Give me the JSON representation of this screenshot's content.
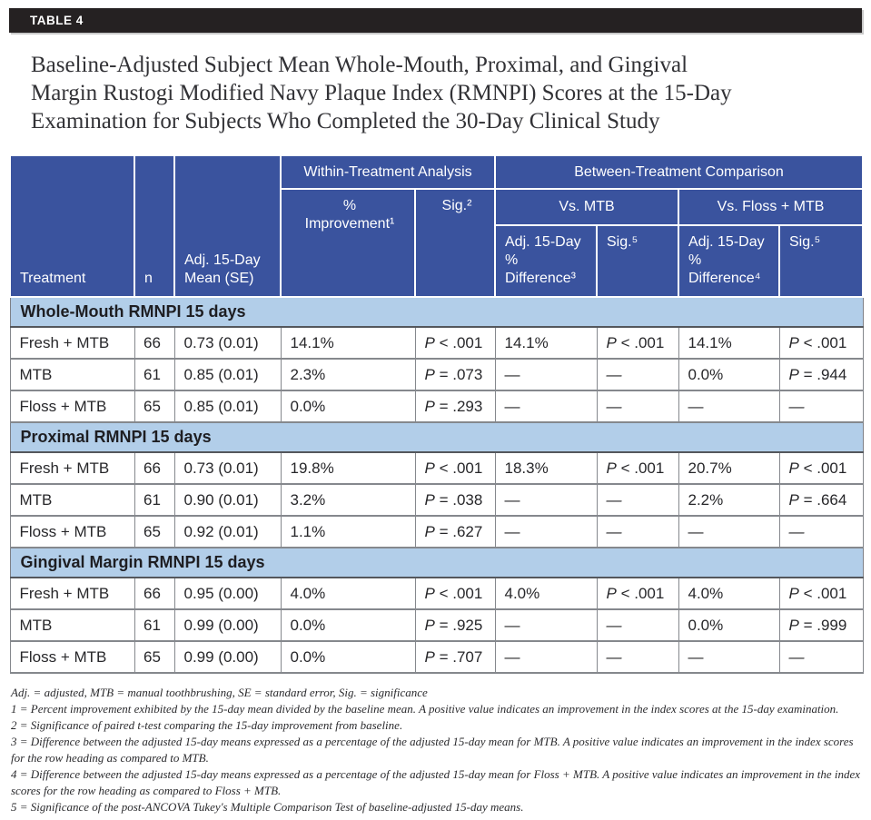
{
  "tag": "TABLE 4",
  "title": "Baseline-Adjusted Subject Mean Whole-Mouth, Proximal, and Gingival\nMargin Rustogi Modified Navy Plaque Index (RMNPI) Scores at the 15-Day\nExamination for Subjects Who Completed the 30-Day Clinical Study",
  "colors": {
    "header_blue": "#3A539E",
    "section_blue": "#B2CEE9",
    "tag_bar_black": "#252122",
    "border_gray": "#85888D"
  },
  "table": {
    "header": {
      "treatment": "Treatment",
      "n": "n",
      "mean": "Adj. 15-Day Mean (SE)",
      "within_group": "Within-Treatment Analysis",
      "between_group": "Between-Treatment Comparison",
      "pct_improvement": "%\nImprovement¹",
      "sig2": "Sig.²",
      "vs_mtb": "Vs. MTB",
      "vs_floss": "Vs. Floss + MTB",
      "adj_diff3": "Adj. 15-Day % Difference³",
      "sig5a": "Sig.⁵",
      "adj_diff4": "Adj. 15-Day % Difference⁴",
      "sig5b": "Sig.⁵"
    },
    "column_keys": [
      "treatment",
      "n",
      "adj-15-day-mean",
      "pct-improvement",
      "sig-within",
      "adj-diff-vs-mtb",
      "sig-vs-mtb",
      "adj-diff-vs-floss",
      "sig-vs-floss"
    ],
    "sig_columns": [
      4,
      6,
      8
    ],
    "sections": [
      {
        "label": "Whole-Mouth RMNPI 15 days",
        "rows": [
          [
            "Fresh + MTB",
            "66",
            "0.73 (0.01)",
            "14.1%",
            "P < .001",
            "14.1%",
            "P < .001",
            "14.1%",
            "P < .001"
          ],
          [
            "MTB",
            "61",
            "0.85 (0.01)",
            "2.3%",
            "P = .073",
            "—",
            "—",
            "0.0%",
            "P = .944"
          ],
          [
            "Floss + MTB",
            "65",
            "0.85 (0.01)",
            "0.0%",
            "P = .293",
            "—",
            "—",
            "—",
            "—"
          ]
        ]
      },
      {
        "label": "Proximal RMNPI 15 days",
        "rows": [
          [
            "Fresh + MTB",
            "66",
            "0.73 (0.01)",
            "19.8%",
            "P < .001",
            "18.3%",
            "P < .001",
            "20.7%",
            "P < .001"
          ],
          [
            "MTB",
            "61",
            "0.90 (0.01)",
            "3.2%",
            "P = .038",
            "—",
            "—",
            "2.2%",
            "P = .664"
          ],
          [
            "Floss + MTB",
            "65",
            "0.92 (0.01)",
            "1.1%",
            "P = .627",
            "—",
            "—",
            "—",
            "—"
          ]
        ]
      },
      {
        "label": "Gingival Margin RMNPI 15 days",
        "rows": [
          [
            "Fresh + MTB",
            "66",
            "0.95 (0.00)",
            "4.0%",
            "P < .001",
            "4.0%",
            "P < .001",
            "4.0%",
            "P < .001"
          ],
          [
            "MTB",
            "61",
            "0.99 (0.00)",
            "0.0%",
            "P = .925",
            "—",
            "—",
            "0.0%",
            "P = .999"
          ],
          [
            "Floss + MTB",
            "65",
            "0.99 (0.00)",
            "0.0%",
            "P = .707",
            "—",
            "—",
            "—",
            "—"
          ]
        ]
      }
    ]
  },
  "footnotes": [
    "Adj. = adjusted, MTB = manual toothbrushing, SE = standard error, Sig. = significance",
    "1 = Percent improvement exhibited by the 15-day mean divided by the baseline mean. A positive value indicates an improvement in the index scores at the 15-day examination.",
    "2 = Significance of paired t-test comparing the 15-day improvement from baseline.",
    "3 = Difference between the adjusted 15-day means expressed as a percentage of the adjusted 15-day mean for MTB. A positive value indicates an improvement in the index scores for the row heading as compared to MTB.",
    "4 = Difference between the adjusted 15-day means expressed as a percentage of the adjusted 15-day mean for Floss + MTB. A positive value indicates an improvement in the index scores for the row heading as compared to Floss + MTB.",
    "5 = Significance of the post-ANCOVA Tukey's Multiple Comparison Test of baseline-adjusted 15-day means."
  ]
}
